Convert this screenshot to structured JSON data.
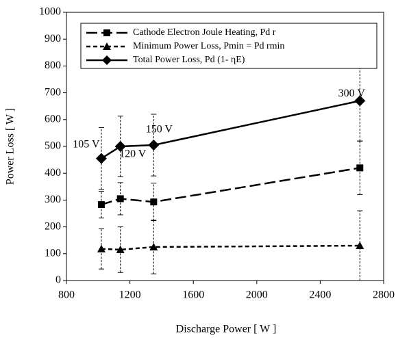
{
  "chart_data": {
    "type": "line",
    "xlabel": "Discharge Power [ W ]",
    "ylabel": "Power Loss [ W ]",
    "x": [
      1020,
      1140,
      1350,
      2650
    ],
    "point_labels": [
      "105 V",
      "120 V",
      "150 V",
      "300 V"
    ],
    "series": [
      {
        "name": "Cathode Electron Joule Heating, Pd r",
        "color": "#000000",
        "marker": "square",
        "dash": "long",
        "values": [
          283,
          305,
          293,
          420
        ],
        "errors": [
          50,
          60,
          70,
          100
        ]
      },
      {
        "name": "Minimum Power Loss, Pmin = Pd rmin",
        "color": "#000000",
        "marker": "triangle",
        "dash": "short",
        "values": [
          118,
          115,
          125,
          130
        ],
        "errors": [
          75,
          85,
          100,
          130
        ]
      },
      {
        "name": "Total Power Loss, Pd (1- ηE)",
        "color": "#000000",
        "marker": "diamond",
        "dash": "solid",
        "values": [
          455,
          500,
          505,
          670
        ],
        "errors": [
          115,
          113,
          115,
          150
        ]
      }
    ],
    "xlim": [
      800,
      2800
    ],
    "xticks": [
      800,
      1200,
      1600,
      2000,
      2400,
      2800
    ],
    "ylim": [
      0,
      1000
    ],
    "yticks": [
      0,
      100,
      200,
      300,
      400,
      500,
      600,
      700,
      800,
      900,
      1000
    ],
    "legend": "upper center"
  }
}
